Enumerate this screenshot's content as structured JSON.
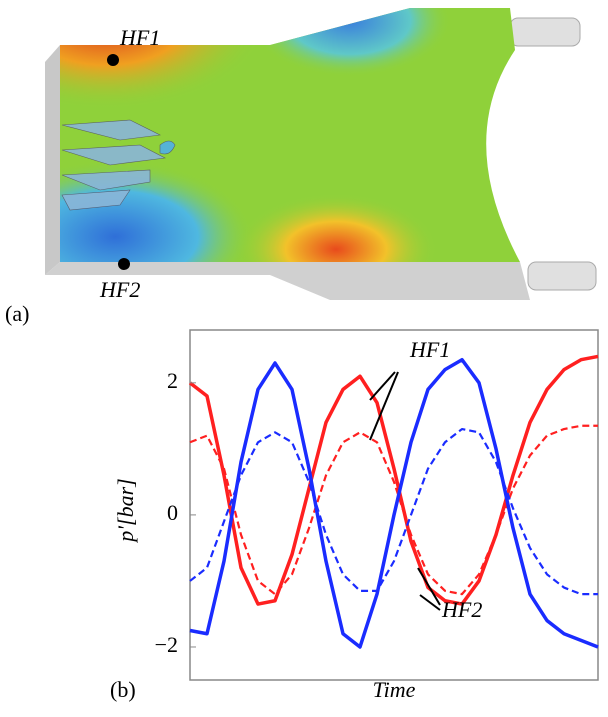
{
  "panel_a": {
    "label": "(a)",
    "probe_top": "HF1",
    "probe_bottom": "HF2"
  },
  "chart_data": {
    "type": "line",
    "panel_label": "(b)",
    "x_label": "Time",
    "y_label": "p'[bar]",
    "ylim": [
      -2.5,
      2.8
    ],
    "yticks": [
      {
        "value": -2,
        "label": "−2"
      },
      0,
      2
    ],
    "annotations": [
      "HF1",
      "HF2"
    ],
    "series": [
      {
        "color": "#ff2020",
        "dash": false,
        "values": [
          2.0,
          1.8,
          0.6,
          -0.8,
          -1.35,
          -1.3,
          -0.6,
          0.4,
          1.4,
          1.9,
          2.1,
          1.7,
          0.7,
          -0.4,
          -1.1,
          -1.3,
          -1.35,
          -1.0,
          -0.3,
          0.6,
          1.4,
          1.9,
          2.2,
          2.35,
          2.4
        ]
      },
      {
        "color": "#ff2020",
        "dash": true,
        "values": [
          1.1,
          1.2,
          0.7,
          -0.3,
          -1.0,
          -1.2,
          -0.9,
          -0.2,
          0.6,
          1.1,
          1.25,
          1.1,
          0.5,
          -0.3,
          -0.9,
          -1.15,
          -1.2,
          -0.9,
          -0.3,
          0.4,
          0.9,
          1.2,
          1.3,
          1.35,
          1.35
        ]
      },
      {
        "color": "#1a2cff",
        "dash": false,
        "values": [
          -1.75,
          -1.8,
          -0.7,
          0.8,
          1.9,
          2.3,
          1.9,
          0.7,
          -0.7,
          -1.8,
          -2.0,
          -1.2,
          0.0,
          1.1,
          1.9,
          2.2,
          2.35,
          2.0,
          1.0,
          -0.2,
          -1.2,
          -1.6,
          -1.8,
          -1.9,
          -2.0
        ]
      },
      {
        "color": "#1a2cff",
        "dash": true,
        "values": [
          -1.0,
          -0.8,
          -0.1,
          0.6,
          1.1,
          1.25,
          1.1,
          0.5,
          -0.3,
          -0.9,
          -1.15,
          -1.15,
          -0.7,
          0.0,
          0.7,
          1.1,
          1.3,
          1.25,
          0.8,
          0.1,
          -0.5,
          -0.9,
          -1.1,
          -1.2,
          -1.2
        ]
      }
    ]
  }
}
